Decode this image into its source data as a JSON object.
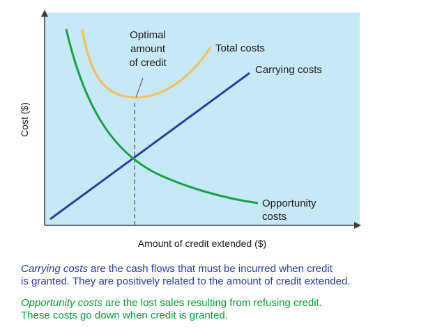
{
  "chart": {
    "y_axis_label": "Cost ($)",
    "x_axis_label": "Amount of credit extended ($)",
    "annotations": {
      "optimal_line1": "Optimal",
      "optimal_line2": "amount",
      "optimal_line3": "of credit"
    },
    "series_labels": {
      "total": "Total costs",
      "carrying": "Carrying costs",
      "opportunity_line1": "Opportunity",
      "opportunity_line2": "costs"
    }
  },
  "captions": {
    "carrying_term": "Carrying costs",
    "carrying_line1_rest": " are the cash flows that must be incurred when credit",
    "carrying_line2": "is granted. They are positively related to the amount of credit extended.",
    "opportunity_term": "Opportunity costs",
    "opportunity_line1_rest": " are the lost sales resulting from refusing credit.",
    "opportunity_line2": "These costs go down when credit is granted."
  },
  "colors": {
    "panel_background": "#c7e8f7",
    "axis": "#3a3a3a",
    "total_costs": "#f6c15a",
    "carrying_costs": "#2a3f9a",
    "opportunity_costs": "#16a04a",
    "optimal_marker": "#6a6a6a",
    "caption_blue": "#2b3a9a",
    "caption_green": "#0a9a3a"
  }
}
